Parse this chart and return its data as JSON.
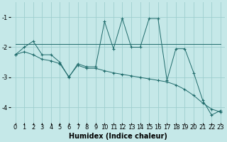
{
  "xlabel": "Humidex (Indice chaleur)",
  "background_color": "#c5e8e8",
  "grid_color": "#9ecece",
  "line_color": "#1f6b6b",
  "x_data": [
    0,
    1,
    2,
    3,
    4,
    5,
    6,
    7,
    8,
    9,
    10,
    11,
    12,
    13,
    14,
    15,
    16,
    17,
    18,
    19,
    20,
    21,
    22,
    23
  ],
  "line1_y": [
    -2.25,
    -2.0,
    -1.8,
    -2.25,
    -2.25,
    -2.5,
    -3.0,
    -2.55,
    -2.65,
    -2.65,
    -1.15,
    -2.05,
    -1.05,
    -2.0,
    -2.0,
    -1.05,
    -1.05,
    -3.1,
    -2.05,
    -2.05,
    -2.85,
    -3.75,
    -4.25,
    -4.1
  ],
  "line2_y": [
    -1.9,
    -1.9,
    -1.9,
    -1.9,
    -1.9,
    -1.9,
    -1.9,
    -1.9,
    -1.9,
    -1.9,
    -1.9,
    -1.9,
    -1.9,
    -1.9,
    -1.9,
    -1.9,
    -1.9,
    -1.9,
    -1.9,
    -1.9,
    -1.9,
    -1.9,
    -1.9,
    -1.9
  ],
  "line3_y": [
    -2.25,
    -2.15,
    -2.25,
    -2.4,
    -2.45,
    -2.55,
    -2.98,
    -2.6,
    -2.7,
    -2.7,
    -2.78,
    -2.85,
    -2.9,
    -2.95,
    -3.0,
    -3.05,
    -3.1,
    -3.15,
    -3.25,
    -3.4,
    -3.6,
    -3.85,
    -4.05,
    -4.15
  ],
  "ylim": [
    -4.5,
    -0.5
  ],
  "xlim": [
    -0.5,
    23.5
  ],
  "yticks": [
    -4,
    -3,
    -2,
    -1
  ],
  "xticks": [
    0,
    1,
    2,
    3,
    4,
    5,
    6,
    7,
    8,
    9,
    10,
    11,
    12,
    13,
    14,
    15,
    16,
    17,
    18,
    19,
    20,
    21,
    22,
    23
  ],
  "xlabel_fontsize": 7,
  "tick_fontsize": 6,
  "linewidth": 0.7,
  "markersize": 3
}
